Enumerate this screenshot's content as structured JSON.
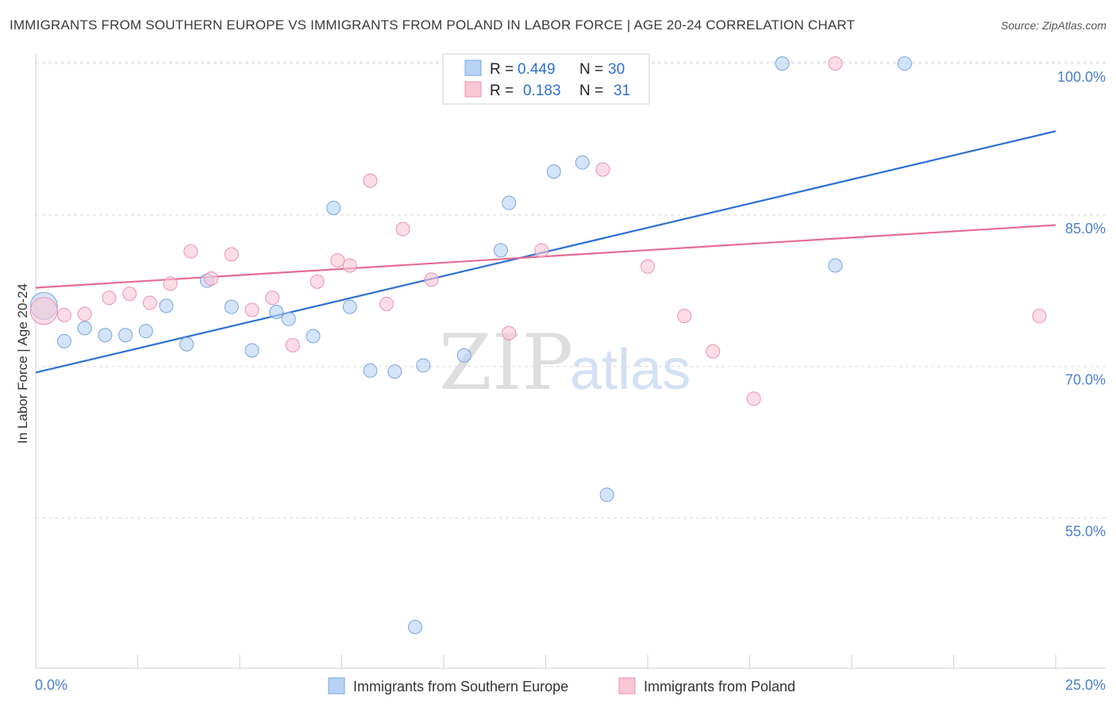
{
  "header": {
    "title": "IMMIGRANTS FROM SOUTHERN EUROPE VS IMMIGRANTS FROM POLAND IN LABOR FORCE | AGE 20-24 CORRELATION CHART",
    "source": "Source: ZipAtlas.com"
  },
  "watermark": {
    "zip": "ZIP",
    "atlas": "atlas"
  },
  "stats": {
    "r_label": "R =",
    "n_label": "N =",
    "rows": [
      {
        "r": "0.449",
        "n": "30"
      },
      {
        "r": "0.183",
        "n": "31"
      }
    ]
  },
  "colors": {
    "series1_fill": "#b8d2f5",
    "series1_stroke": "#7aa5e0",
    "series1_line": "#2d6fd2",
    "series2_fill": "#f9c6d4",
    "series2_stroke": "#ec93ad",
    "series2_line": "#e46d92",
    "grid": "#d8d8d8",
    "tick_label": "#4a7fd0"
  },
  "chart_data": {
    "type": "scatter",
    "title": "IMMIGRANTS FROM SOUTHERN EUROPE VS IMMIGRANTS FROM POLAND IN LABOR FORCE | AGE 20-24 CORRELATION CHART",
    "xlabel": "",
    "ylabel": "In Labor Force | Age 20-24",
    "xlim": [
      0,
      25
    ],
    "ylim": [
      40,
      101.5
    ],
    "x_tick_labels": [
      "0.0%",
      "25.0%"
    ],
    "y_ticks": [
      55,
      70,
      85,
      100
    ],
    "y_tick_labels": [
      "55.0%",
      "70.0%",
      "85.0%",
      "100.0%"
    ],
    "grid": true,
    "legend_position": "bottom",
    "series": [
      {
        "name": "Immigrants from Southern Europe",
        "r": 0.449,
        "n": 30,
        "trend": {
          "x": [
            0,
            25
          ],
          "y": [
            69.4,
            93.3
          ]
        },
        "points": [
          {
            "x": 0.2,
            "y": 76.0,
            "big": true
          },
          {
            "x": 0.7,
            "y": 72.5
          },
          {
            "x": 1.2,
            "y": 73.8
          },
          {
            "x": 1.7,
            "y": 73.1
          },
          {
            "x": 2.2,
            "y": 73.1
          },
          {
            "x": 2.7,
            "y": 73.5
          },
          {
            "x": 3.2,
            "y": 76.0
          },
          {
            "x": 3.7,
            "y": 72.2
          },
          {
            "x": 4.2,
            "y": 78.5
          },
          {
            "x": 4.8,
            "y": 75.9
          },
          {
            "x": 5.3,
            "y": 71.6
          },
          {
            "x": 5.9,
            "y": 75.4
          },
          {
            "x": 6.2,
            "y": 74.7
          },
          {
            "x": 6.8,
            "y": 73.0
          },
          {
            "x": 7.3,
            "y": 85.7
          },
          {
            "x": 7.7,
            "y": 75.9
          },
          {
            "x": 8.2,
            "y": 69.6
          },
          {
            "x": 8.8,
            "y": 69.5
          },
          {
            "x": 9.5,
            "y": 70.1
          },
          {
            "x": 10.5,
            "y": 71.1
          },
          {
            "x": 11.4,
            "y": 81.5
          },
          {
            "x": 11.6,
            "y": 86.2
          },
          {
            "x": 12.7,
            "y": 89.3
          },
          {
            "x": 13.4,
            "y": 90.2
          },
          {
            "x": 14.0,
            "y": 57.3
          },
          {
            "x": 9.3,
            "y": 44.2
          },
          {
            "x": 14.3,
            "y": 100.0
          },
          {
            "x": 18.3,
            "y": 100.0
          },
          {
            "x": 19.6,
            "y": 80.0
          },
          {
            "x": 21.3,
            "y": 100.0
          }
        ]
      },
      {
        "name": "Immigrants from Poland",
        "r": 0.183,
        "n": 31,
        "trend": {
          "x": [
            0,
            25
          ],
          "y": [
            77.8,
            84.0
          ]
        },
        "points": [
          {
            "x": 0.2,
            "y": 75.5,
            "big": true
          },
          {
            "x": 0.7,
            "y": 75.1
          },
          {
            "x": 1.2,
            "y": 75.2
          },
          {
            "x": 1.8,
            "y": 76.8
          },
          {
            "x": 2.3,
            "y": 77.2
          },
          {
            "x": 2.8,
            "y": 76.3
          },
          {
            "x": 3.3,
            "y": 78.2
          },
          {
            "x": 3.8,
            "y": 81.4
          },
          {
            "x": 4.3,
            "y": 78.7
          },
          {
            "x": 4.8,
            "y": 81.1
          },
          {
            "x": 5.3,
            "y": 75.6
          },
          {
            "x": 5.8,
            "y": 76.8
          },
          {
            "x": 6.3,
            "y": 72.1
          },
          {
            "x": 6.9,
            "y": 78.4
          },
          {
            "x": 7.4,
            "y": 80.5
          },
          {
            "x": 7.7,
            "y": 80.0
          },
          {
            "x": 8.2,
            "y": 88.4
          },
          {
            "x": 8.6,
            "y": 76.2
          },
          {
            "x": 9.0,
            "y": 83.6
          },
          {
            "x": 9.7,
            "y": 78.6
          },
          {
            "x": 10.2,
            "y": 100.0
          },
          {
            "x": 11.6,
            "y": 73.3
          },
          {
            "x": 12.4,
            "y": 81.5
          },
          {
            "x": 12.8,
            "y": 100.0
          },
          {
            "x": 13.9,
            "y": 89.5
          },
          {
            "x": 15.0,
            "y": 79.9
          },
          {
            "x": 15.9,
            "y": 75.0
          },
          {
            "x": 16.6,
            "y": 71.5
          },
          {
            "x": 17.6,
            "y": 66.8
          },
          {
            "x": 19.6,
            "y": 100.0
          },
          {
            "x": 24.6,
            "y": 75.0
          }
        ]
      }
    ]
  }
}
